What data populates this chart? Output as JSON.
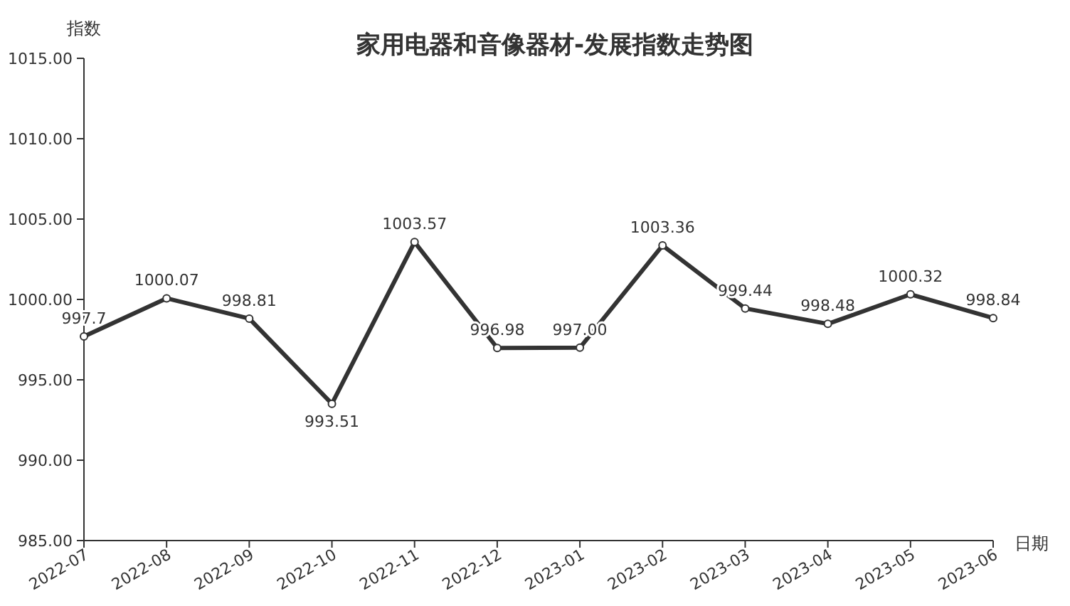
{
  "chart_data": {
    "type": "line",
    "title": "家用电器和音像器材-发展指数走势图",
    "xlabel": "日期",
    "ylabel": "指数",
    "categories": [
      "2022-07",
      "2022-08",
      "2022-09",
      "2022-10",
      "2022-11",
      "2022-12",
      "2023-01",
      "2023-02",
      "2023-03",
      "2023-04",
      "2023-05",
      "2023-06"
    ],
    "series": [
      {
        "color": "#333333",
        "values": [
          997.7,
          1000.07,
          998.81,
          993.51,
          1003.57,
          996.98,
          997.0,
          1003.36,
          999.44,
          998.48,
          1000.32,
          998.84
        ],
        "value_labels": [
          "997.7",
          "1000.07",
          "998.81",
          "993.51",
          "1003.57",
          "996.98",
          "997.00",
          "1003.36",
          "999.44",
          "998.48",
          "1000.32",
          "998.84"
        ]
      }
    ],
    "ylim": [
      985,
      1015
    ],
    "yticks": [
      {
        "value": 985,
        "label": "985.00"
      },
      {
        "value": 990,
        "label": "990.00"
      },
      {
        "value": 995,
        "label": "995.00"
      },
      {
        "value": 1000,
        "label": "1000.00"
      },
      {
        "value": 1005,
        "label": "1005.00"
      },
      {
        "value": 1010,
        "label": "1010.00"
      },
      {
        "value": 1015,
        "label": "1015.00"
      }
    ],
    "grid": false,
    "marker": "circle",
    "line_style": "solid"
  }
}
